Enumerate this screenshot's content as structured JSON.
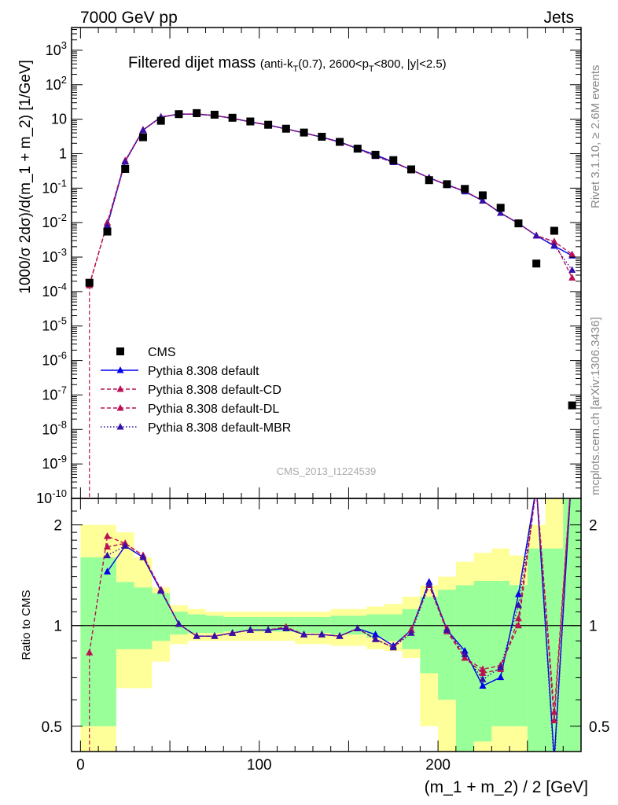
{
  "header": {
    "left": "7000 GeV pp",
    "right": "Jets"
  },
  "side_labels": {
    "top": "Rivet 3.1.10, ≥ 2.6M events",
    "bottom": "mcplots.cern.ch [arXiv:1306.3436]"
  },
  "watermark": "CMS_2013_I1224539",
  "chart_data": [
    {
      "type": "scatter",
      "panel": "main",
      "title_main": "Filtered dijet mass",
      "title_sub": "(anti-k_T(0.7), 2600<p_T<800, |y|<2.5)",
      "ylabel": "1000/σ 2dσ)/d(m_1 + m_2) [1/GeV]",
      "xlabel": "(m_1 + m_2) / 2 [GeV]",
      "log_y": true,
      "xlim": [
        -5,
        280
      ],
      "ylim": [
        1e-10,
        3000
      ],
      "x_ticks": [
        "0",
        "100",
        "200"
      ],
      "y_ticks": [
        "10^-10",
        "10^-9",
        "10^-8",
        "10^-7",
        "10^-6",
        "10^-5",
        "10^-4",
        "10^-3",
        "10^-2",
        "10^-1",
        "1",
        "10",
        "10^2",
        "10^3"
      ],
      "legend_position": "lower-left",
      "x": [
        5,
        15,
        25,
        35,
        45,
        55,
        65,
        75,
        85,
        95,
        105,
        115,
        125,
        135,
        145,
        155,
        165,
        175,
        185,
        195,
        205,
        215,
        225,
        235,
        245,
        255,
        265,
        275
      ],
      "series": [
        {
          "name": "CMS",
          "color": "#000000",
          "marker": "square",
          "values": [
            0.00018,
            0.0055,
            0.36,
            3.0,
            9.0,
            14,
            15,
            13.5,
            11,
            8.6,
            6.9,
            5.3,
            4.1,
            3.1,
            2.2,
            1.4,
            0.93,
            0.65,
            0.35,
            0.17,
            0.13,
            0.095,
            0.062,
            0.027,
            0.0095,
            0.00065,
            0.0058,
            5e-08
          ]
        },
        {
          "name": "Pythia 8.308 default",
          "color": "#0000ee",
          "marker": "triangle",
          "dash": "solid",
          "values": [
            null,
            0.0085,
            0.6,
            4.8,
            11.5,
            14,
            14,
            12.8,
            10.6,
            8.4,
            6.75,
            5.25,
            4.0,
            3.0,
            2.2,
            1.4,
            0.93,
            0.57,
            0.34,
            0.2,
            0.125,
            0.08,
            0.043,
            0.019,
            0.0095,
            0.0042,
            0.0021,
            0.0011
          ]
        },
        {
          "name": "Pythia 8.308 default-CD",
          "color": "#bb1155",
          "marker": "triangle",
          "dash": "dashed",
          "values": [
            0.00015,
            0.01,
            0.63,
            4.9,
            11.6,
            14.1,
            14.1,
            12.8,
            10.6,
            8.4,
            6.75,
            5.2,
            4.0,
            3.0,
            2.15,
            1.4,
            0.85,
            0.56,
            0.34,
            0.2,
            0.125,
            0.082,
            0.043,
            0.019,
            0.0095,
            0.0042,
            0.0028,
            0.00025
          ]
        },
        {
          "name": "Pythia 8.308 default-DL",
          "color": "#bb1155",
          "marker": "triangle",
          "dash": "dashed",
          "values": [
            0.00016,
            0.0095,
            0.62,
            4.9,
            11.6,
            14.1,
            14.1,
            12.8,
            10.6,
            8.4,
            6.75,
            5.2,
            4.0,
            3.0,
            2.15,
            1.4,
            0.85,
            0.56,
            0.34,
            0.2,
            0.125,
            0.082,
            0.043,
            0.019,
            0.0095,
            0.0042,
            0.0028,
            0.0012
          ]
        },
        {
          "name": "Pythia 8.308 default-MBR",
          "color": "#3311aa",
          "marker": "triangle",
          "dash": "dotted",
          "values": [
            null,
            0.008,
            0.58,
            4.8,
            11.5,
            14,
            14,
            12.8,
            10.6,
            8.4,
            6.75,
            5.2,
            4.0,
            3.0,
            2.15,
            1.4,
            0.85,
            0.56,
            0.34,
            0.2,
            0.125,
            0.08,
            0.043,
            0.019,
            0.0095,
            0.0042,
            0.0022,
            0.00042
          ]
        }
      ]
    },
    {
      "type": "line",
      "panel": "ratio",
      "ylabel": "Ratio to CMS",
      "xlabel": "(m_1 + m_2) / 2 [GeV]",
      "log_y": true,
      "ylim": [
        0.42,
        2.4
      ],
      "y_ticks": [
        "0.5",
        "1",
        "2"
      ],
      "x": [
        5,
        15,
        25,
        35,
        45,
        55,
        65,
        75,
        85,
        95,
        105,
        115,
        125,
        135,
        145,
        155,
        165,
        175,
        185,
        195,
        205,
        215,
        225,
        235,
        245,
        255,
        265,
        275
      ],
      "band_yellow": {
        "low": [
          0.3,
          0.3,
          0.65,
          0.65,
          0.78,
          0.88,
          0.9,
          0.9,
          0.9,
          0.9,
          0.9,
          0.9,
          0.88,
          0.88,
          0.87,
          0.87,
          0.85,
          0.84,
          0.8,
          0.5,
          0.3,
          0.3,
          0.4,
          0.4,
          0.4,
          0.3,
          0.3,
          0.3
        ],
        "high": [
          2.0,
          2.0,
          1.9,
          1.6,
          1.3,
          1.15,
          1.12,
          1.1,
          1.1,
          1.1,
          1.1,
          1.1,
          1.1,
          1.1,
          1.12,
          1.12,
          1.14,
          1.16,
          1.22,
          1.32,
          1.4,
          1.55,
          1.65,
          1.7,
          1.62,
          2.0,
          2.4,
          2.4
        ]
      },
      "band_green": {
        "low": [
          0.5,
          0.5,
          0.85,
          0.85,
          0.9,
          0.94,
          0.95,
          0.95,
          0.96,
          0.96,
          0.96,
          0.96,
          0.95,
          0.95,
          0.94,
          0.94,
          0.92,
          0.9,
          0.85,
          0.72,
          0.6,
          0.4,
          0.45,
          0.5,
          0.5,
          0.4,
          0.4,
          0.4
        ],
        "high": [
          1.6,
          1.6,
          1.35,
          1.3,
          1.25,
          1.1,
          1.08,
          1.07,
          1.06,
          1.06,
          1.06,
          1.06,
          1.06,
          1.06,
          1.07,
          1.07,
          1.08,
          1.08,
          1.12,
          1.22,
          1.28,
          1.32,
          1.36,
          1.36,
          1.32,
          1.7,
          1.7,
          2.4
        ]
      },
      "series": [
        {
          "name": "Pythia 8.308 default",
          "values": [
            null,
            1.45,
            1.73,
            1.6,
            1.27,
            1.01,
            0.93,
            0.93,
            0.95,
            0.97,
            0.97,
            0.98,
            0.94,
            0.94,
            0.93,
            0.98,
            0.94,
            0.87,
            0.97,
            1.35,
            0.97,
            0.84,
            0.66,
            0.7,
            1.24,
            2.6,
            0.4,
            3.0
          ]
        },
        {
          "name": "Pythia 8.308 default-CD",
          "values": [
            0.83,
            1.85,
            1.76,
            1.62,
            1.28,
            1.01,
            0.93,
            0.93,
            0.95,
            0.97,
            0.97,
            0.99,
            0.94,
            0.94,
            0.93,
            0.98,
            0.91,
            0.86,
            0.97,
            1.32,
            0.96,
            0.8,
            0.72,
            0.74,
            1.05,
            2.6,
            0.52,
            3.0
          ]
        },
        {
          "name": "Pythia 8.308 default-DL",
          "values": [
            null,
            1.72,
            1.76,
            1.62,
            1.28,
            1.01,
            0.93,
            0.93,
            0.95,
            0.97,
            0.97,
            0.99,
            0.94,
            0.94,
            0.93,
            0.98,
            0.91,
            0.86,
            0.97,
            1.32,
            0.98,
            0.8,
            0.74,
            0.76,
            1.0,
            2.6,
            0.55,
            3.0
          ]
        },
        {
          "name": "Pythia 8.308 default-MBR",
          "values": [
            null,
            1.62,
            1.73,
            1.6,
            1.27,
            1.01,
            0.93,
            0.93,
            0.95,
            0.97,
            0.97,
            0.98,
            0.94,
            0.94,
            0.93,
            0.98,
            0.91,
            0.86,
            0.95,
            1.33,
            0.97,
            0.82,
            0.69,
            0.75,
            1.15,
            2.6,
            0.38,
            3.0
          ]
        }
      ]
    }
  ]
}
